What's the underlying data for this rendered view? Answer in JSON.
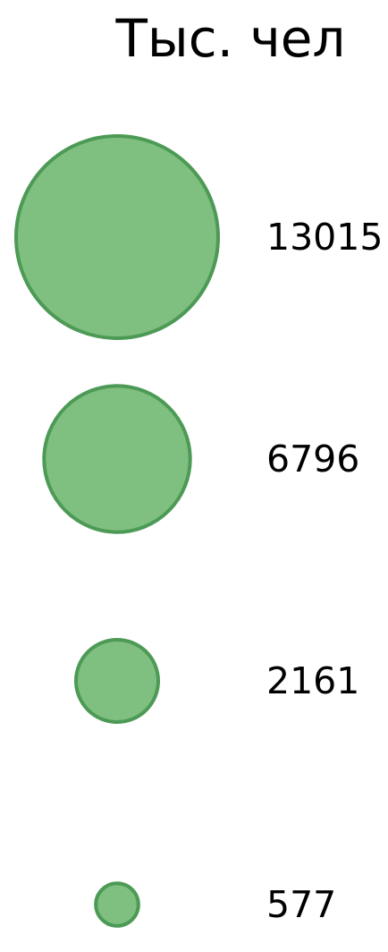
{
  "chart_data": {
    "type": "scatter",
    "title": "Тыс. чел",
    "legend": {
      "kind": "bubble-size",
      "entries": [
        {
          "label": "13015",
          "value": 13015
        },
        {
          "label": "6796",
          "value": 6796
        },
        {
          "label": "2161",
          "value": 2161
        },
        {
          "label": "577",
          "value": 577
        }
      ]
    },
    "colors": {
      "fill": "#7fbf7f",
      "stroke": "#4c9a55"
    }
  }
}
